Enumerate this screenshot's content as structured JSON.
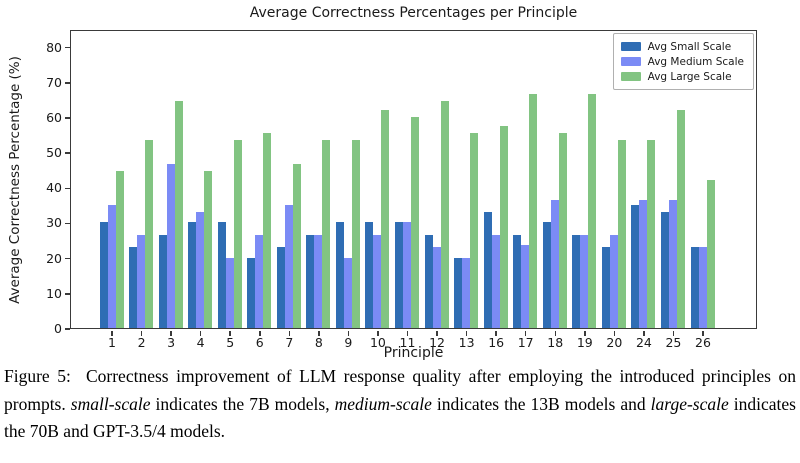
{
  "chart_data": {
    "type": "bar",
    "title": "Average Correctness Percentages per Principle",
    "xlabel": "Principle",
    "ylabel": "Average Correctness Percentage (%)",
    "ylim": [
      0,
      85
    ],
    "yticks": [
      0,
      10,
      20,
      30,
      40,
      50,
      60,
      70,
      80
    ],
    "grid": false,
    "legend_position": "upper right",
    "categories": [
      "1",
      "2",
      "3",
      "4",
      "5",
      "6",
      "7",
      "8",
      "9",
      "10",
      "11",
      "12",
      "13",
      "16",
      "17",
      "18",
      "19",
      "20",
      "24",
      "25",
      "26"
    ],
    "series": [
      {
        "name": "Avg Small Scale",
        "color": "#2f6db4",
        "values": [
          30,
          23,
          26.5,
          30,
          30,
          20,
          23,
          26.5,
          30,
          30,
          30,
          26.5,
          20,
          33,
          26.5,
          30,
          26.5,
          23,
          35,
          33,
          23
        ]
      },
      {
        "name": "Avg Medium Scale",
        "color": "#7b8bf5",
        "values": [
          35,
          26.5,
          46.5,
          33,
          20,
          26.5,
          35,
          26.5,
          20,
          26.5,
          30,
          23,
          20,
          26.5,
          23.5,
          36.5,
          26.5,
          26.5,
          36.5,
          36.5,
          23
        ]
      },
      {
        "name": "Avg Large Scale",
        "color": "#82c482",
        "values": [
          44.5,
          53.5,
          64.5,
          44.5,
          53.5,
          55.5,
          46.5,
          53.5,
          53.5,
          62,
          60,
          64.5,
          55.5,
          57.5,
          66.5,
          55.5,
          66.5,
          53.5,
          53.5,
          62,
          42
        ]
      }
    ]
  },
  "caption": {
    "segments": [
      {
        "text": "Figure 5:  Correctness improvement of LLM response quality after employing the introduced principles on prompts. ",
        "italic": false
      },
      {
        "text": "small-scale",
        "italic": true
      },
      {
        "text": " indicates the 7B models, ",
        "italic": false
      },
      {
        "text": "medium-scale",
        "italic": true
      },
      {
        "text": " indicates the 13B models and ",
        "italic": false
      },
      {
        "text": "large-scale",
        "italic": true
      },
      {
        "text": " indicates the 70B and GPT-3.5/4 models.",
        "italic": false
      }
    ]
  }
}
